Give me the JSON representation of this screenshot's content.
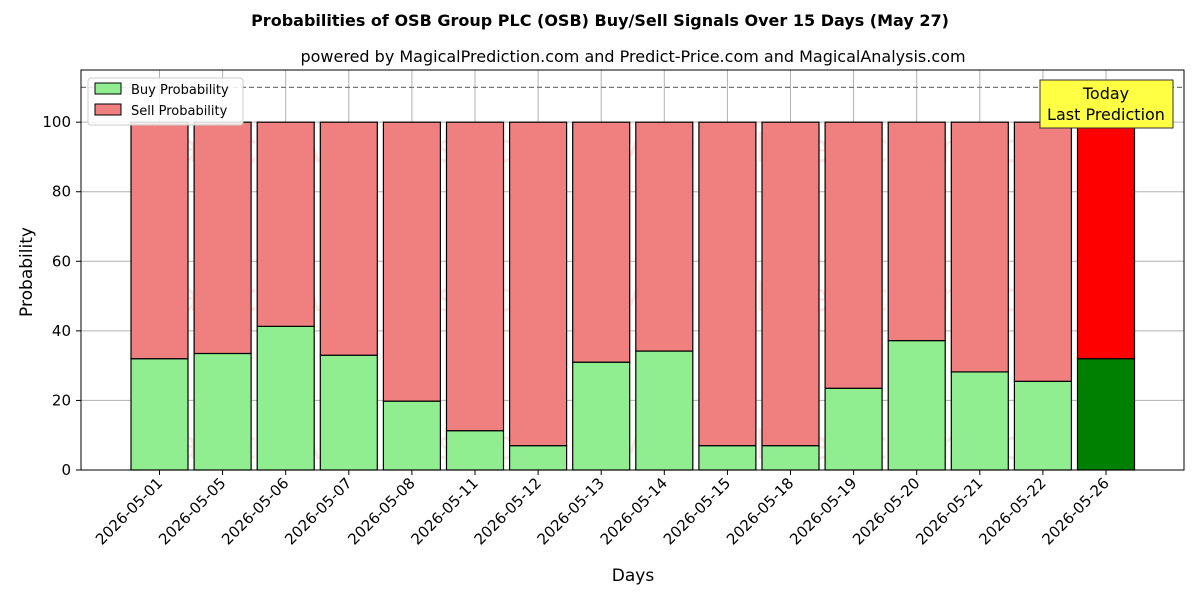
{
  "chart_data": {
    "type": "bar",
    "stacked": true,
    "title": "Probabilities of OSB Group PLC (OSB) Buy/Sell Signals Over 15 Days (May 27)",
    "subtitle": "powered by MagicalPrediction.com and Predict-Price.com and MagicalAnalysis.com",
    "xlabel": "Days",
    "ylabel": "Probability",
    "ylim": [
      0,
      115
    ],
    "yticks": [
      0,
      20,
      40,
      60,
      80,
      100
    ],
    "grid": true,
    "legend_position": "top-left",
    "reference_line": 110,
    "categories": [
      "2026-05-01",
      "2026-05-05",
      "2026-05-06",
      "2026-05-07",
      "2026-05-08",
      "2026-05-11",
      "2026-05-12",
      "2026-05-13",
      "2026-05-14",
      "2026-05-15",
      "2026-05-18",
      "2026-05-19",
      "2026-05-20",
      "2026-05-21",
      "2026-05-22",
      "2026-05-26"
    ],
    "series": [
      {
        "name": "Buy Probability",
        "color": "#90EE90",
        "highlight_color": "#008000",
        "values": [
          32,
          33.5,
          41.3,
          33,
          19.8,
          11.3,
          7,
          31,
          34.2,
          7,
          7,
          23.5,
          37.2,
          28.2,
          25.5,
          32
        ]
      },
      {
        "name": "Sell Probability",
        "color": "#F08080",
        "highlight_color": "#FF0000",
        "values": [
          68,
          66.5,
          58.7,
          67,
          80.2,
          88.7,
          93,
          69,
          65.8,
          93,
          93,
          76.5,
          62.8,
          71.8,
          74.5,
          68
        ]
      }
    ],
    "highlight_index": 15,
    "annotation": {
      "lines": [
        "Today",
        "Last Prediction"
      ],
      "bg": "#FFFF44"
    },
    "watermarks": [
      "MagicalAnalysis.com",
      "MagicalPrediction.com"
    ]
  }
}
